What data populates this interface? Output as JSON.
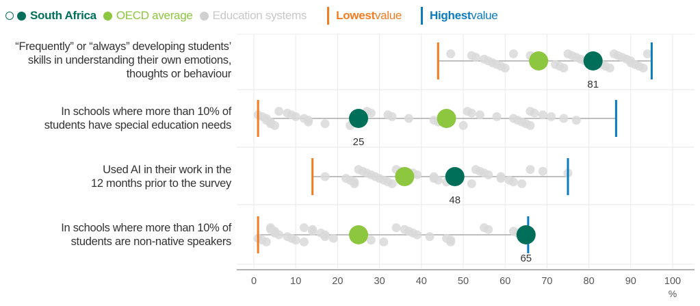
{
  "legend": {
    "south_africa": "South Africa",
    "oecd": "OECD average",
    "systems": "Education systems",
    "lowest_bold": "Lowest",
    "lowest_rest": " value",
    "highest_bold": "Highest",
    "highest_rest": " value"
  },
  "colors": {
    "south_africa": "#006f5a",
    "oecd": "#8dc63f",
    "systems": "#d9d9d9",
    "lowest": "#f47b20",
    "highest": "#0a7bc1"
  },
  "chart_data": {
    "type": "dot-range",
    "xlabel": "%",
    "xlim": [
      0,
      100
    ],
    "xticks": [
      "0",
      "10",
      "20",
      "30",
      "40",
      "50",
      "60",
      "70",
      "80",
      "90",
      "100"
    ],
    "xtick_values": [
      0,
      10,
      20,
      30,
      40,
      50,
      60,
      70,
      80,
      90,
      100
    ],
    "grid": true,
    "rows": [
      {
        "label_lines": [
          "“Frequently” or “always” developing students’",
          "skills in understanding their own emotions,",
          "thoughts or behaviour"
        ],
        "lowest": 44,
        "highest": 95,
        "oecd": 68,
        "south_africa": 81,
        "sa_label": "81",
        "systems": [
          47,
          52,
          53,
          55,
          56,
          57,
          58,
          59,
          60,
          62,
          66,
          67,
          67,
          68,
          69,
          72,
          73,
          74,
          75,
          76,
          77,
          78,
          79,
          82,
          83,
          84,
          85,
          86,
          87,
          88,
          89,
          90,
          90,
          91,
          92,
          93,
          94
        ]
      },
      {
        "label_lines": [
          "In schools where more than 10% of",
          "students have special education needs"
        ],
        "lowest": 1,
        "highest": 86.5,
        "oecd": 46,
        "south_africa": 25,
        "sa_label": "25",
        "systems": [
          1,
          2,
          3,
          3,
          4,
          4,
          5,
          6,
          8,
          9,
          10,
          12,
          13,
          13,
          17,
          23,
          27,
          28,
          32,
          33,
          37,
          43,
          44,
          46,
          50,
          51,
          52,
          54,
          58,
          62,
          63,
          64,
          65,
          66,
          66,
          67,
          69,
          71,
          74,
          77
        ]
      },
      {
        "label_lines": [
          "Used AI in their work in the",
          "12 months prior to the survey"
        ],
        "lowest": 14,
        "highest": 75,
        "oecd": 36,
        "south_africa": 48,
        "sa_label": "48",
        "systems": [
          17,
          22,
          23,
          24,
          24,
          25,
          26,
          27,
          28,
          29,
          30,
          31,
          32,
          33,
          34,
          35,
          38,
          39,
          43,
          43,
          44,
          46,
          52,
          53,
          54,
          55,
          56,
          59,
          59,
          61,
          62,
          64,
          66,
          69,
          75
        ]
      },
      {
        "label_lines": [
          "In schools where more than 10% of",
          "students are non-native speakers"
        ],
        "lowest": 1,
        "highest": 65.5,
        "oecd": 25,
        "south_africa": 65,
        "sa_label": "65",
        "systems": [
          1,
          2,
          3,
          4,
          4,
          5,
          5,
          6,
          8,
          9,
          10,
          12,
          12,
          14,
          14,
          16,
          17,
          17,
          19,
          28,
          31,
          34,
          36,
          37,
          38,
          39,
          42,
          46,
          47,
          47,
          55,
          56,
          62,
          63
        ]
      }
    ]
  }
}
